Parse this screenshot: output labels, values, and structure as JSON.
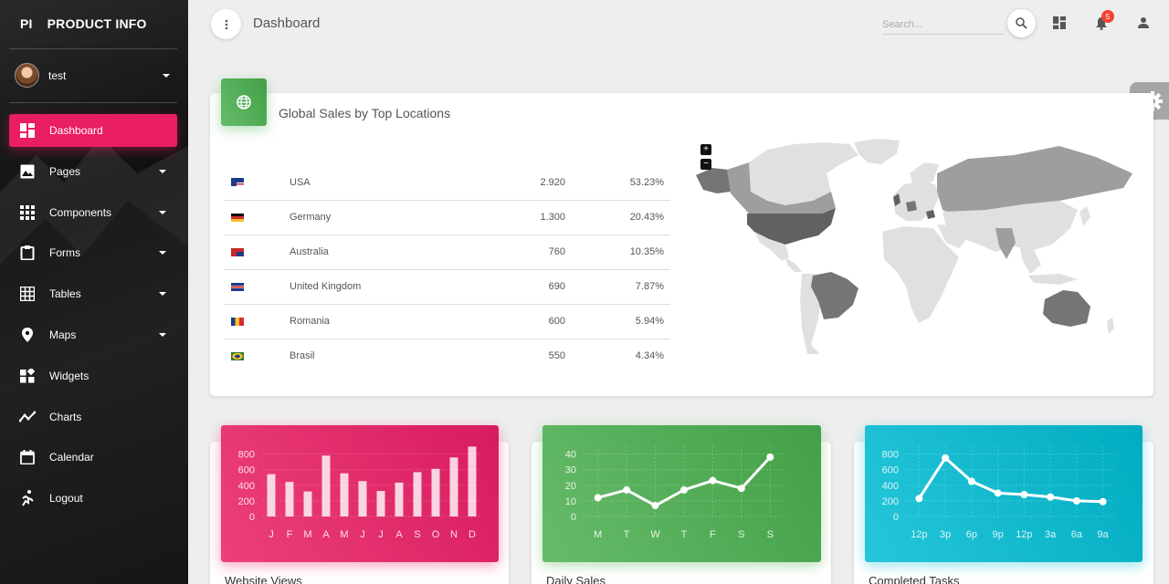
{
  "brand": {
    "short": "PI",
    "name": "PRODUCT INFO"
  },
  "user": {
    "name": "test"
  },
  "nav": [
    {
      "label": "Dashboard",
      "icon": "dashboard-icon",
      "active": true,
      "caret": false
    },
    {
      "label": "Pages",
      "icon": "image-icon",
      "caret": true
    },
    {
      "label": "Components",
      "icon": "apps-icon",
      "caret": true
    },
    {
      "label": "Forms",
      "icon": "clipboard-icon",
      "caret": true
    },
    {
      "label": "Tables",
      "icon": "grid-icon",
      "caret": true
    },
    {
      "label": "Maps",
      "icon": "place-icon",
      "caret": true
    },
    {
      "label": "Widgets",
      "icon": "widgets-icon",
      "caret": false
    },
    {
      "label": "Charts",
      "icon": "timeline-icon",
      "caret": false
    },
    {
      "label": "Calendar",
      "icon": "calendar-icon",
      "caret": false
    },
    {
      "label": "Logout",
      "icon": "run-icon",
      "caret": false
    }
  ],
  "header": {
    "title": "Dashboard",
    "search_placeholder": "Search...",
    "notifications": "5"
  },
  "sales": {
    "title": "Global Sales by Top Locations",
    "rows": [
      {
        "country": "USA",
        "value": "2.920",
        "percent": "53.23%",
        "flag": "us"
      },
      {
        "country": "Germany",
        "value": "1.300",
        "percent": "20.43%",
        "flag": "de"
      },
      {
        "country": "Australia",
        "value": "760",
        "percent": "10.35%",
        "flag": "au"
      },
      {
        "country": "United Kingdom",
        "value": "690",
        "percent": "7.87%",
        "flag": "gb"
      },
      {
        "country": "Romania",
        "value": "600",
        "percent": "5.94%",
        "flag": "ro"
      },
      {
        "country": "Brasil",
        "value": "550",
        "percent": "4.34%",
        "flag": "br"
      }
    ],
    "map_zoom_in": "+",
    "map_zoom_out": "−"
  },
  "colors": {
    "accent": "#e91e63",
    "green": "#4caf50",
    "cyan": "#00bcd4"
  },
  "chart_data": [
    {
      "type": "bar",
      "title": "Website Views",
      "categories": [
        "J",
        "F",
        "M",
        "A",
        "M",
        "J",
        "J",
        "A",
        "S",
        "O",
        "N",
        "D"
      ],
      "values": [
        542,
        443,
        320,
        780,
        553,
        453,
        326,
        434,
        568,
        610,
        756,
        895
      ],
      "ylim": [
        0,
        900
      ],
      "yticks": [
        0,
        200,
        400,
        600,
        800
      ]
    },
    {
      "type": "line",
      "title": "Daily Sales",
      "categories": [
        "M",
        "T",
        "W",
        "T",
        "F",
        "S",
        "S"
      ],
      "values": [
        12,
        17,
        7,
        17,
        23,
        18,
        38
      ],
      "ylim": [
        0,
        45
      ],
      "yticks": [
        0,
        10,
        20,
        30,
        40
      ]
    },
    {
      "type": "line",
      "title": "Completed Tasks",
      "categories": [
        "12p",
        "3p",
        "6p",
        "9p",
        "12p",
        "3a",
        "6a",
        "9a"
      ],
      "values": [
        230,
        750,
        450,
        300,
        280,
        250,
        200,
        190
      ],
      "ylim": [
        0,
        900
      ],
      "yticks": [
        0,
        200,
        400,
        600,
        800
      ]
    }
  ]
}
